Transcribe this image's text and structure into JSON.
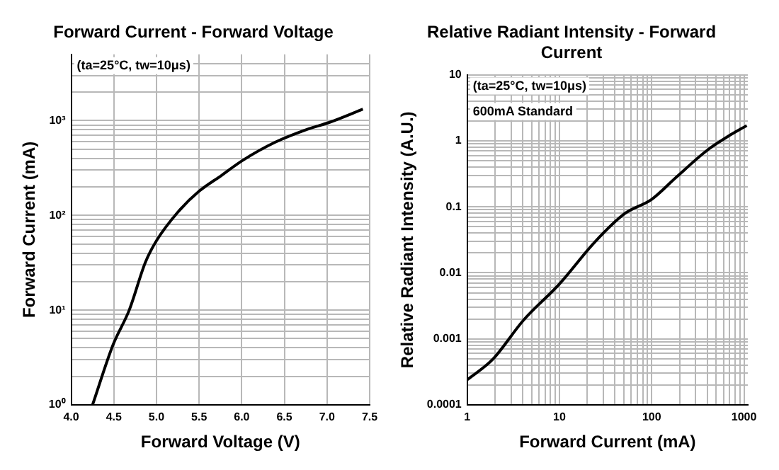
{
  "chart_data": [
    {
      "type": "line",
      "title": "Forward Current - Forward Voltage",
      "xlabel": "Forward Voltage (V)",
      "ylabel": "Forward Current (mA)",
      "annotations": [
        "(ta=25°C, tw=10μs)"
      ],
      "x": [
        4.25,
        4.49,
        4.68,
        4.87,
        5.0,
        5.25,
        5.5,
        5.76,
        6.01,
        6.39,
        6.77,
        7.03,
        7.42
      ],
      "values": [
        1,
        4.3,
        10,
        32,
        54,
        108,
        180,
        263,
        380,
        590,
        810,
        960,
        1320
      ],
      "color": "#000000",
      "xlim": [
        4,
        7.5
      ],
      "xticks": [
        {
          "value": 4,
          "label": "4.0"
        },
        4.5,
        {
          "value": 5,
          "label": "5.0"
        },
        5.5,
        {
          "value": 6,
          "label": "6.0"
        },
        6.5,
        {
          "value": 7,
          "label": "7.0"
        },
        7.5
      ],
      "ylim": [
        1,
        5000
      ],
      "yticks": [
        {
          "value": 1,
          "label": "10⁰"
        },
        {
          "value": 10,
          "label": "10¹"
        },
        {
          "value": 100,
          "label": "10²"
        },
        {
          "value": 1000,
          "label": "10³"
        }
      ],
      "log": "y",
      "grid": true
    },
    {
      "type": "line",
      "title": "Relative Radiant Intensity - Forward Current",
      "xlabel": "Forward Current (mA)",
      "ylabel": "Relative Radiant Intensity (A.U.)",
      "annotations": [
        "(ta=25°C, tw=10μs)",
        "600mA Standard"
      ],
      "x": [
        1,
        1.89,
        4.05,
        10,
        24,
        51,
        100,
        184,
        395,
        660,
        1070
      ],
      "values": [
        0.00024,
        0.00049,
        0.0019,
        0.0068,
        0.029,
        0.079,
        0.13,
        0.28,
        0.71,
        1.15,
        1.7
      ],
      "color": "#000000",
      "xlim": [
        1,
        1100
      ],
      "xticks": [
        1,
        10,
        100,
        1000
      ],
      "ylim": [
        0.0001,
        10
      ],
      "yticks": [
        0.0001,
        0.001,
        0.01,
        0.1,
        1,
        10
      ],
      "log": "xy",
      "grid": true
    }
  ]
}
